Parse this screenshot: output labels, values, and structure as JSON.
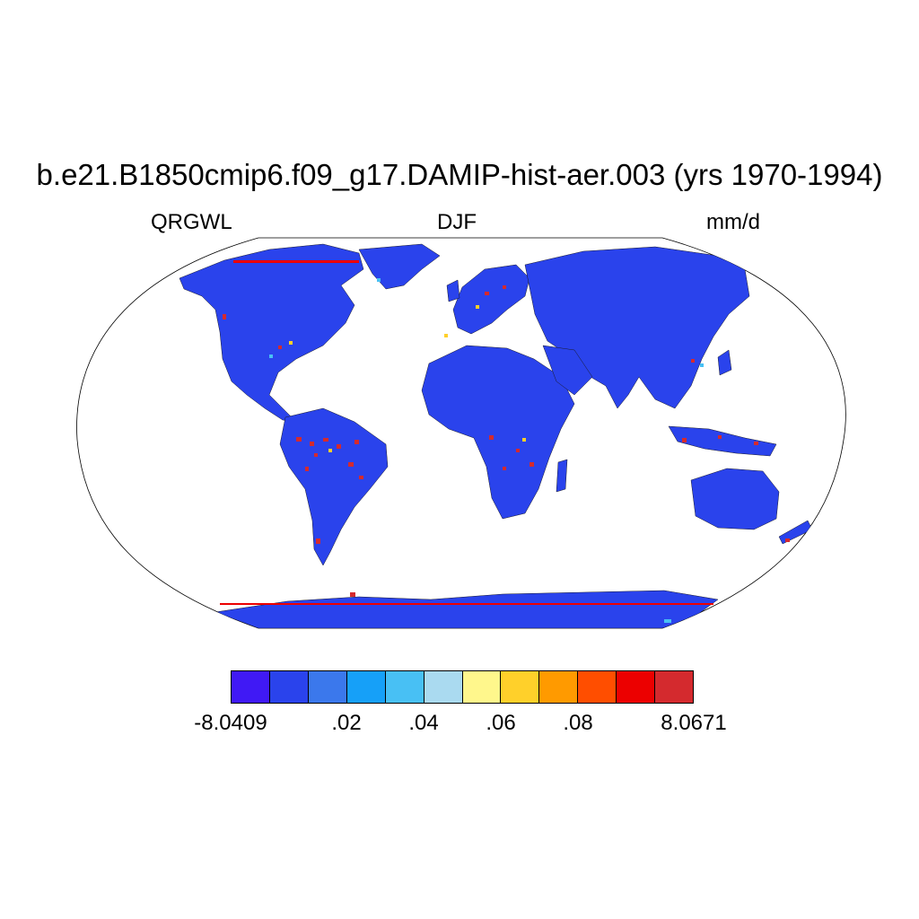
{
  "title": "b.e21.B1850cmip6.f09_g17.DAMIP-hist-aer.003 (yrs 1970-1994)",
  "left_label": "QRGWL",
  "center_label": "DJF",
  "right_label": "mm/d",
  "colorbar": {
    "colors": [
      "#4019f5",
      "#2a43ec",
      "#3b78ec",
      "#16a0f8",
      "#48c0f4",
      "#aadaf0",
      "#fff78c",
      "#ffd02a",
      "#ff9a00",
      "#ff4e00",
      "#ec0000",
      "#d42a2e"
    ],
    "labels": [
      "-8.0409",
      ".02",
      ".04",
      ".06",
      ".08",
      "8.0671"
    ]
  },
  "map": {
    "projection": "Robinson",
    "land_base_color": "#2a43ec"
  }
}
